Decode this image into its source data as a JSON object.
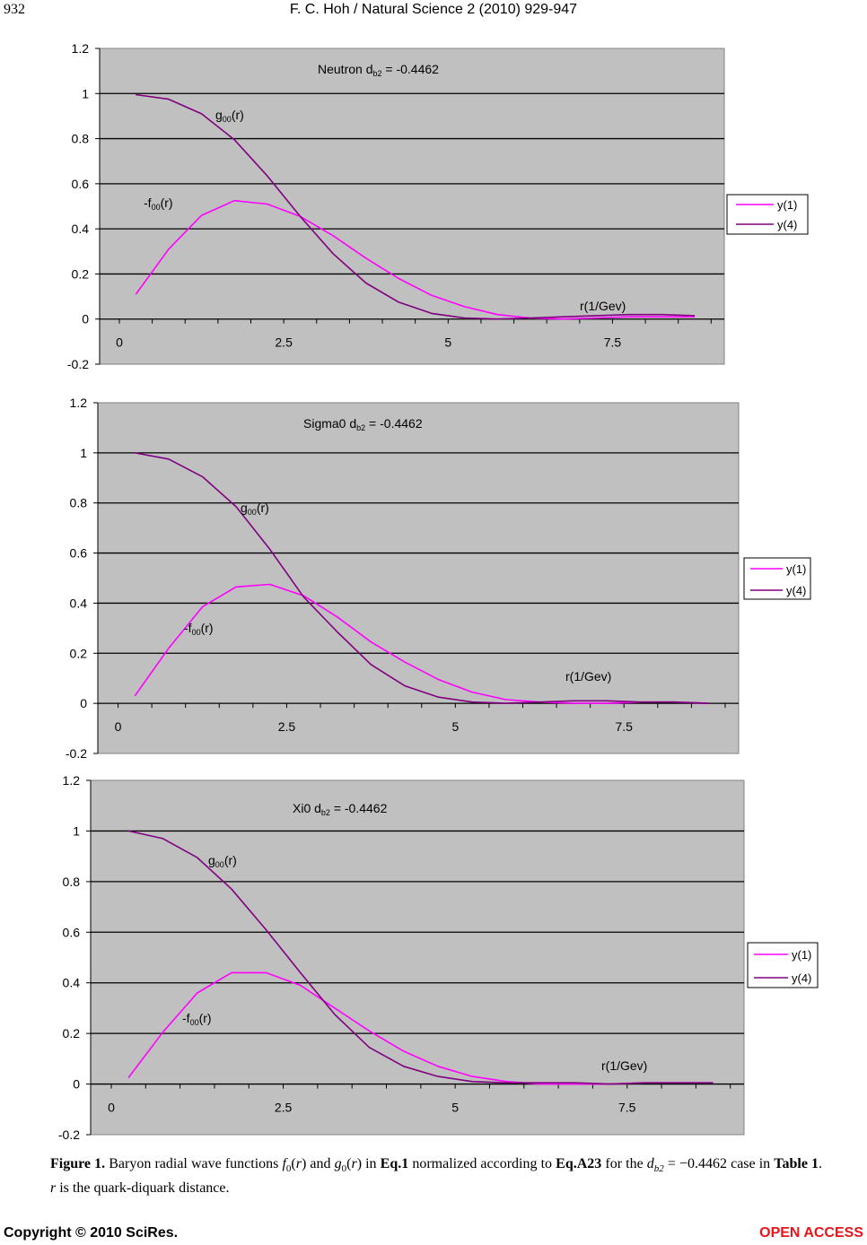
{
  "page": {
    "number": "932",
    "running_head": "F. C. Hoh / Natural Science 2 (2010) 929-947"
  },
  "colors": {
    "plot_bg": "#c0c0c0",
    "y1": "#ff00ff",
    "y4": "#800080"
  },
  "chart_data": [
    {
      "type": "line",
      "title": "Neutron  d",
      "title_sub": "b2",
      "title_value": " = -0.4462",
      "label_g": "g",
      "label_g_sub": "00",
      "label_g_tail": "(r)",
      "label_f": "-f",
      "label_f_sub": "00",
      "label_f_tail": "(r)",
      "xlabel": "r(1/Gev)",
      "ylim": [
        -0.2,
        1.2
      ],
      "xlim": [
        -0.3,
        9.2
      ],
      "yticks": [
        "1.2",
        "1",
        "0.8",
        "0.6",
        "0.4",
        "0.2",
        "0",
        "-0.2"
      ],
      "xticks": [
        "0",
        "2.5",
        "5",
        "7.5"
      ],
      "legend": [
        "y(1)",
        "y(4)"
      ],
      "series": [
        {
          "name": "y(1)",
          "x": [
            0.25,
            0.75,
            1.25,
            1.75,
            2.25,
            2.75,
            3.25,
            3.75,
            4.25,
            4.75,
            5.25,
            5.75,
            6.25,
            6.75,
            7.25,
            7.75,
            8.25,
            8.75
          ],
          "values": [
            0.11,
            0.31,
            0.46,
            0.525,
            0.51,
            0.455,
            0.37,
            0.27,
            0.18,
            0.105,
            0.055,
            0.02,
            0.005,
            0.0,
            0.005,
            0.01,
            0.01,
            0.01
          ]
        },
        {
          "name": "y(4)",
          "x": [
            0.25,
            0.75,
            1.25,
            1.75,
            2.25,
            2.75,
            3.25,
            3.75,
            4.25,
            4.75,
            5.25,
            5.75,
            6.25,
            6.75,
            7.25,
            7.75,
            8.25,
            8.75
          ],
          "values": [
            0.995,
            0.975,
            0.91,
            0.795,
            0.635,
            0.455,
            0.29,
            0.16,
            0.075,
            0.025,
            0.005,
            0.0,
            0.005,
            0.01,
            0.015,
            0.02,
            0.02,
            0.015
          ]
        }
      ]
    },
    {
      "type": "line",
      "title": "Sigma0  d",
      "title_sub": "b2",
      "title_value": " = -0.4462",
      "label_g": "g",
      "label_g_sub": "00",
      "label_g_tail": "(r)",
      "label_f": "-f",
      "label_f_sub": "00",
      "label_f_tail": "(r)",
      "xlabel": "r(1/Gev)",
      "ylim": [
        -0.2,
        1.2
      ],
      "xlim": [
        -0.3,
        9.2
      ],
      "yticks": [
        "1.2",
        "1",
        "0.8",
        "0.6",
        "0.4",
        "0.2",
        "0",
        "-0.2"
      ],
      "xticks": [
        "0",
        "2.5",
        "5",
        "7.5"
      ],
      "legend": [
        "y(1)",
        "y(4)"
      ],
      "series": [
        {
          "name": "y(1)",
          "x": [
            0.25,
            0.75,
            1.25,
            1.75,
            2.25,
            2.75,
            3.25,
            3.75,
            4.25,
            4.75,
            5.25,
            5.75,
            6.25,
            6.75,
            7.25,
            7.75,
            8.25,
            8.75
          ],
          "values": [
            0.03,
            0.22,
            0.385,
            0.465,
            0.475,
            0.43,
            0.345,
            0.245,
            0.165,
            0.095,
            0.045,
            0.015,
            0.005,
            0.0,
            0.0,
            0.005,
            0.005,
            0.0
          ]
        },
        {
          "name": "y(4)",
          "x": [
            0.25,
            0.75,
            1.25,
            1.75,
            2.25,
            2.75,
            3.25,
            3.75,
            4.25,
            4.75,
            5.25,
            5.75,
            6.25,
            6.75,
            7.25,
            7.75,
            8.25,
            8.75
          ],
          "values": [
            1.0,
            0.975,
            0.905,
            0.785,
            0.615,
            0.425,
            0.285,
            0.155,
            0.07,
            0.025,
            0.005,
            0.0,
            0.005,
            0.01,
            0.01,
            0.005,
            0.005,
            0.0
          ]
        }
      ]
    },
    {
      "type": "line",
      "title": "Xi0  d",
      "title_sub": "b2",
      "title_value": " = -0.4462",
      "label_g": "g",
      "label_g_sub": "00",
      "label_g_tail": "(r)",
      "label_f": "-f",
      "label_f_sub": "00",
      "label_f_tail": "(r)",
      "xlabel": "r(1/Gev)",
      "ylim": [
        -0.2,
        1.2
      ],
      "xlim": [
        -0.3,
        9.2
      ],
      "yticks": [
        "1.2",
        "1",
        "0.8",
        "0.6",
        "0.4",
        "0.2",
        "0",
        "-0.2"
      ],
      "xticks": [
        "0",
        "2.5",
        "5",
        "7.5"
      ],
      "legend": [
        "y(1)",
        "y(4)"
      ],
      "series": [
        {
          "name": "y(1)",
          "x": [
            0.25,
            0.75,
            1.25,
            1.75,
            2.25,
            2.75,
            3.25,
            3.75,
            4.25,
            4.75,
            5.25,
            5.75,
            6.25,
            6.75,
            7.25,
            7.75,
            8.25,
            8.75
          ],
          "values": [
            0.025,
            0.205,
            0.36,
            0.44,
            0.44,
            0.39,
            0.3,
            0.21,
            0.13,
            0.07,
            0.03,
            0.01,
            0.0,
            0.0,
            0.0,
            0.005,
            0.005,
            0.005
          ]
        },
        {
          "name": "y(4)",
          "x": [
            0.25,
            0.75,
            1.25,
            1.75,
            2.25,
            2.75,
            3.25,
            3.75,
            4.25,
            4.75,
            5.25,
            5.75,
            6.25,
            6.75,
            7.25,
            7.75,
            8.25,
            8.75
          ],
          "values": [
            1.0,
            0.97,
            0.895,
            0.77,
            0.61,
            0.44,
            0.275,
            0.145,
            0.07,
            0.03,
            0.01,
            0.005,
            0.005,
            0.005,
            0.0,
            0.005,
            0.005,
            0.005
          ]
        }
      ]
    }
  ],
  "caption": {
    "label": "Figure 1.",
    "t1": " Baryon radial wave functions ",
    "f": "f",
    "f_sub": "0",
    "r1": "r",
    "t2": " and ",
    "g": "g",
    "g_sub": "0",
    "r2": "r",
    "t3": " in ",
    "eq1": "Eq.1",
    "t4": " normalized according to ",
    "eqa23": "Eq.A23",
    "t5": " for the ",
    "d": "d",
    "d_sub": "b2",
    "t6": " = −0.4462 case in ",
    "table": "Table 1",
    "t7": ". ",
    "r3": "r",
    "t8": " is the quark-diquark distance."
  },
  "footer": {
    "copyright": "Copyright © 2010 SciRes.",
    "open_access": "OPEN ACCESS"
  }
}
